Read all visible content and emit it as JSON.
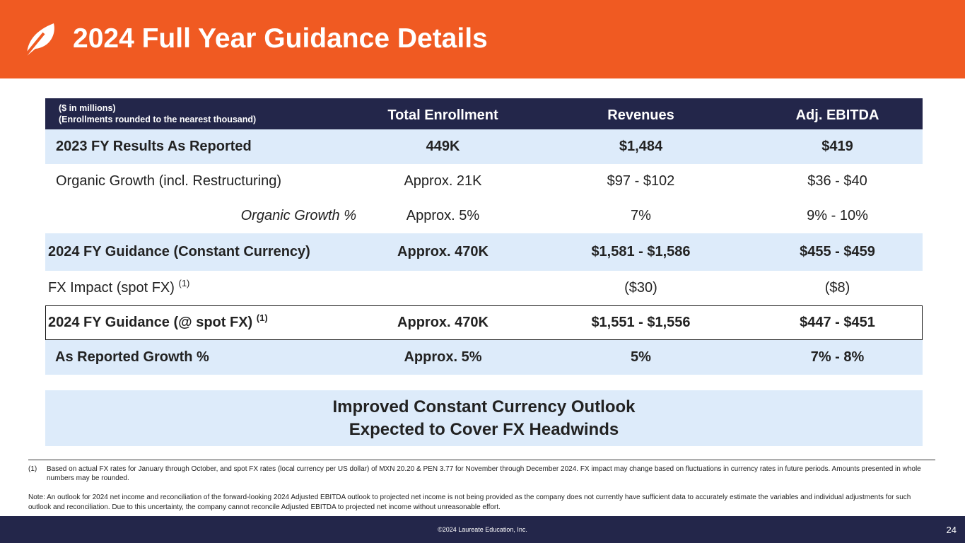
{
  "colors": {
    "brand": "#F05A22",
    "navy": "#23264A",
    "shade": "#DDEBFA"
  },
  "header": {
    "title": "2024 Full Year Guidance Details",
    "logo_icon": "laureate-leaf-logo"
  },
  "table": {
    "note_line1": "($ in millions)",
    "note_line2": "(Enrollments  rounded  to the nearest  thousand)",
    "columns": [
      "Total Enrollment",
      "Revenues",
      "Adj. EBITDA"
    ],
    "rows": [
      {
        "label": "2023 FY Results As Reported",
        "sup": "",
        "values": [
          "449K",
          "$1,484",
          "$419"
        ]
      },
      {
        "label": "Organic Growth (incl. Restructuring)",
        "sup": "",
        "values": [
          "Approx.  21K",
          "$97 - $102",
          "$36 - $40"
        ]
      },
      {
        "label": "Organic Growth %",
        "sup": "",
        "values": [
          "Approx.  5%",
          "7%",
          "9% - 10%"
        ]
      },
      {
        "label": "2024 FY Guidance (Constant Currency)",
        "sup": "",
        "values": [
          "Approx. 470K",
          "$1,581 - $1,586",
          "$455 - $459"
        ]
      },
      {
        "label": "FX Impact (spot FX)",
        "sup": "(1)",
        "values": [
          "",
          "($30)",
          "($8)"
        ]
      },
      {
        "label": "2024 FY Guidance (@ spot FX)",
        "sup": "(1)",
        "values": [
          "Approx. 470K",
          "$1,551 - $1,556",
          "$447 - $451"
        ]
      },
      {
        "label": "As Reported Growth %",
        "sup": "",
        "values": [
          "Approx. 5%",
          "5%",
          "7% - 8%"
        ]
      }
    ]
  },
  "callout": {
    "line1": "Improved Constant  Currency Outlook",
    "line2": "Expected to Cover FX Headwinds"
  },
  "footnote": {
    "num": "(1)",
    "text": "Based on actual FX rates for January  through  October, and  spot FX rates (local currency  per US dollar) of MXN 20.20 & PEN 3.77 for November  through  December 2024. FX impact may change  based on fluctuations  in currency  rates in future periods. Amounts  presented  in whole  numbers  may be rounded."
  },
  "note": "Note: An outlook  for 2024 net income and reconciliation  of the forward-looking  2024 Adjusted  EBITDA outlook  to projected net income is not being provided as the company does not currently  have sufficient data to accurately estimate the variables and individual adjustments  for such outlook and reconciliation.  Due to this uncertainty,  the company cannot reconcile Adjusted EBITDA to projected net income without  unreasonable  effort.",
  "footer": {
    "copyright": "©2024 Laureate Education, Inc.",
    "page": "24"
  }
}
